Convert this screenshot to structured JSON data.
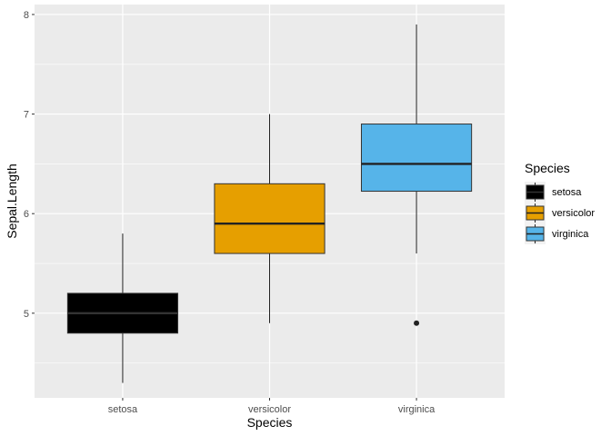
{
  "chart_data": {
    "type": "boxplot",
    "title": "",
    "xlabel": "Species",
    "ylabel": "Sepal.Length",
    "categories": [
      "setosa",
      "versicolor",
      "virginica"
    ],
    "ylim": [
      4.15,
      8.1
    ],
    "yticks": [
      5,
      6,
      7,
      8
    ],
    "grid": true,
    "legend": {
      "title": "Species",
      "position": "right",
      "items": [
        "setosa",
        "versicolor",
        "virginica"
      ]
    },
    "series": [
      {
        "category": "setosa",
        "color": "#000000",
        "min": 4.3,
        "q1": 4.8,
        "median": 5.0,
        "q3": 5.2,
        "max": 5.8,
        "outliers": []
      },
      {
        "category": "versicolor",
        "color": "#E69F00",
        "min": 4.9,
        "q1": 5.6,
        "median": 5.9,
        "q3": 6.3,
        "max": 7.0,
        "outliers": []
      },
      {
        "category": "virginica",
        "color": "#56B4E9",
        "min": 5.6,
        "q1": 6.225,
        "median": 6.5,
        "q3": 6.9,
        "max": 7.9,
        "outliers": [
          4.9
        ]
      }
    ]
  }
}
